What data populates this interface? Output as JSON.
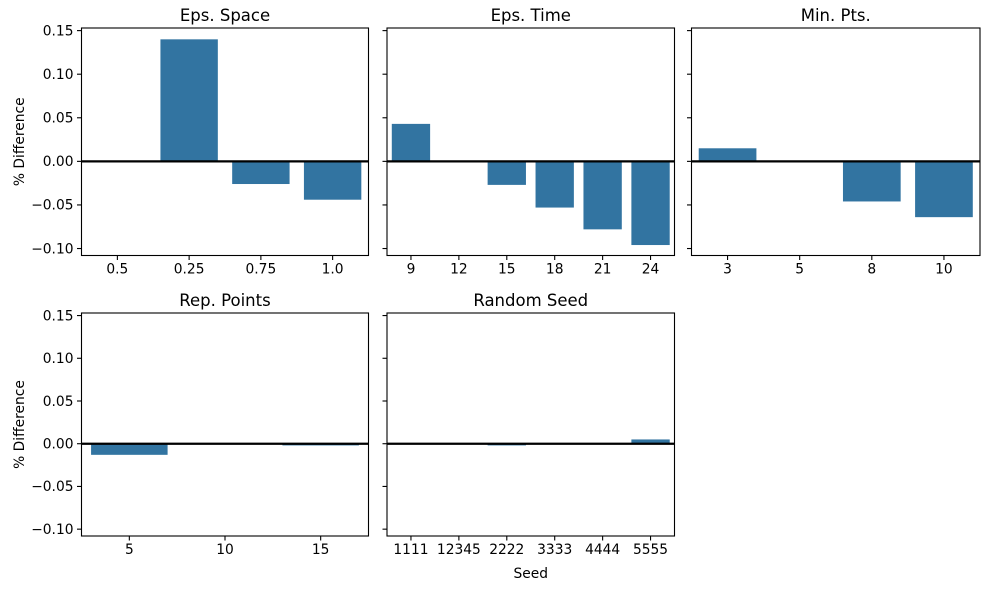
{
  "figure": {
    "background": "#ffffff",
    "bar_color": "#3274a1",
    "axis_color": "#000000",
    "zero_line_color": "#000000",
    "ylabel": "% Difference",
    "ylim": [
      -0.108,
      0.153
    ],
    "yticks": [
      0.15,
      0.1,
      0.05,
      0.0,
      -0.05,
      -0.1
    ],
    "ytick_labels": [
      "0.15",
      "0.10",
      "0.05",
      "0.00",
      "−0.05",
      "−0.10"
    ]
  },
  "chart_data": [
    {
      "type": "bar",
      "title": "Eps. Space",
      "categories": [
        "0.5",
        "0.25",
        "0.75",
        "1.0"
      ],
      "values": [
        0,
        0.14,
        -0.026,
        -0.044
      ],
      "row": 0,
      "col": 0,
      "show_ytick_labels": true,
      "ylabel": "% Difference",
      "xlabel": "",
      "ylim": [
        -0.108,
        0.153
      ],
      "grid": false,
      "legend": "none"
    },
    {
      "type": "bar",
      "title": "Eps. Time",
      "categories": [
        "9",
        "12",
        "15",
        "18",
        "21",
        "24"
      ],
      "values": [
        0.043,
        0,
        -0.027,
        -0.053,
        -0.078,
        -0.096
      ],
      "row": 0,
      "col": 1,
      "show_ytick_labels": false,
      "ylabel": "",
      "xlabel": "",
      "ylim": [
        -0.108,
        0.153
      ],
      "grid": false,
      "legend": "none"
    },
    {
      "type": "bar",
      "title": "Min. Pts.",
      "categories": [
        "3",
        "5",
        "8",
        "10"
      ],
      "values": [
        0.015,
        0,
        -0.046,
        -0.064
      ],
      "row": 0,
      "col": 2,
      "show_ytick_labels": false,
      "ylabel": "",
      "xlabel": "",
      "ylim": [
        -0.108,
        0.153
      ],
      "grid": false,
      "legend": "none"
    },
    {
      "type": "bar",
      "title": "Rep. Points",
      "categories": [
        "5",
        "10",
        "15"
      ],
      "values": [
        -0.013,
        0,
        -0.002
      ],
      "row": 1,
      "col": 0,
      "show_ytick_labels": true,
      "ylabel": "% Difference",
      "xlabel": "",
      "ylim": [
        -0.108,
        0.153
      ],
      "grid": false,
      "legend": "none"
    },
    {
      "type": "bar",
      "title": "Random Seed",
      "categories": [
        "1111",
        "12345",
        "2222",
        "3333",
        "4444",
        "5555"
      ],
      "values": [
        0,
        0,
        -0.002,
        0,
        0,
        0.005
      ],
      "row": 1,
      "col": 1,
      "show_ytick_labels": false,
      "ylabel": "",
      "xlabel": "Seed",
      "ylim": [
        -0.108,
        0.153
      ],
      "grid": false,
      "legend": "none"
    }
  ]
}
